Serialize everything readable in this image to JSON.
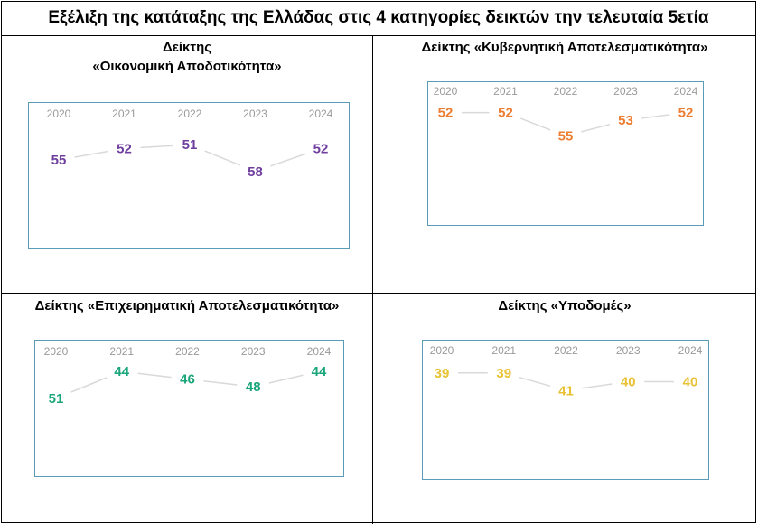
{
  "title": "Εξέλιξη της κατάταξης της Ελλάδας στις 4 κατηγορίες δεικτών την τελευταία 5ετία",
  "panels": [
    {
      "title_line1": "Δείκτης",
      "title_line2": "«Οικονομική Αποδοτικότητα»"
    },
    {
      "title_line1": "Δείκτης «Κυβερνητική Αποτελεσματικότητα»"
    },
    {
      "title_line1": "Δείκτης «Επιχειρηματική Αποτελεσματικότητα»"
    },
    {
      "title_line1": "Δείκτης «Υποδομές»"
    }
  ],
  "chart_data": [
    {
      "type": "line",
      "x": [
        "2020",
        "2021",
        "2022",
        "2023",
        "2024"
      ],
      "series": [
        {
          "values": [
            55,
            52,
            51,
            58,
            52
          ]
        }
      ],
      "color": "#6f3e9e",
      "ylim": [
        50,
        59
      ]
    },
    {
      "type": "line",
      "x": [
        "2020",
        "2021",
        "2022",
        "2023",
        "2024"
      ],
      "series": [
        {
          "values": [
            52,
            52,
            55,
            53,
            52
          ]
        }
      ],
      "color": "#ed7d31",
      "ylim": [
        51,
        56
      ]
    },
    {
      "type": "line",
      "x": [
        "2020",
        "2021",
        "2022",
        "2023",
        "2024"
      ],
      "series": [
        {
          "values": [
            51,
            44,
            46,
            48,
            44
          ]
        }
      ],
      "color": "#1aa67a",
      "ylim": [
        43,
        52
      ]
    },
    {
      "type": "line",
      "x": [
        "2020",
        "2021",
        "2022",
        "2023",
        "2024"
      ],
      "series": [
        {
          "values": [
            39,
            39,
            41,
            40,
            40
          ]
        }
      ],
      "color": "#e8c234",
      "ylim": [
        38,
        42
      ]
    }
  ]
}
